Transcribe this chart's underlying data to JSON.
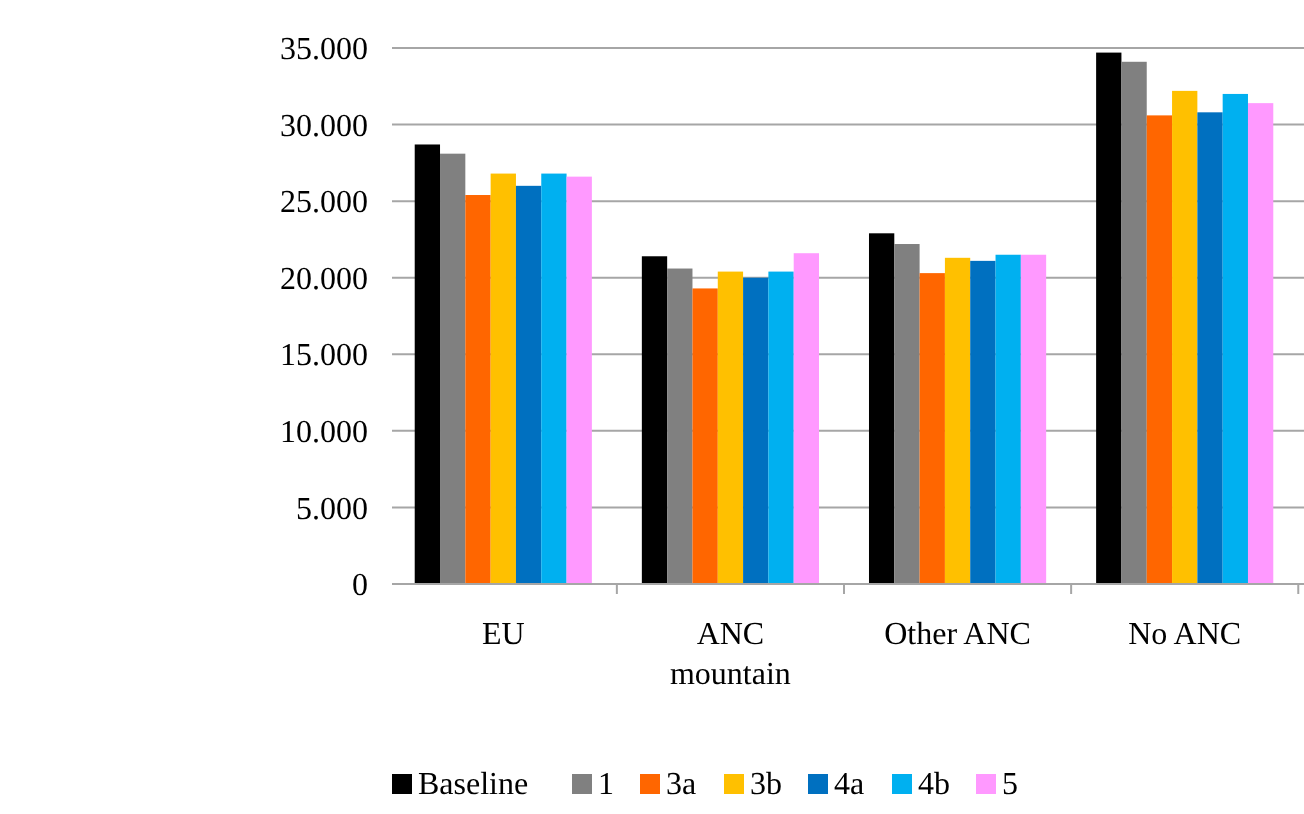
{
  "chart_data": {
    "type": "bar",
    "categories": [
      "EU",
      "ANC mountain",
      "Other ANC",
      "No ANC"
    ],
    "series": [
      {
        "name": "Baseline",
        "color": "#000000",
        "values": [
          28700,
          21400,
          22900,
          34700
        ]
      },
      {
        "name": "1",
        "color": "#808080",
        "values": [
          28100,
          20600,
          22200,
          34100
        ]
      },
      {
        "name": "3a",
        "color": "#ff6600",
        "values": [
          25400,
          19300,
          20300,
          30600
        ]
      },
      {
        "name": "3b",
        "color": "#ffc000",
        "values": [
          26800,
          20400,
          21300,
          32200
        ]
      },
      {
        "name": "4a",
        "color": "#0070c0",
        "values": [
          26000,
          20000,
          21100,
          30800
        ]
      },
      {
        "name": "4b",
        "color": "#00b0f0",
        "values": [
          26800,
          20400,
          21500,
          32000
        ]
      },
      {
        "name": "5",
        "color": "#ff99ff",
        "values": [
          26600,
          21600,
          21500,
          31400
        ]
      }
    ],
    "ylim": [
      0,
      35000
    ],
    "yticks": [
      0,
      {
        "value": 5000,
        "label": "5.000"
      },
      {
        "value": 10000,
        "label": "10.000"
      },
      {
        "value": 15000,
        "label": "15.000"
      },
      {
        "value": 20000,
        "label": "20.000"
      },
      {
        "value": 25000,
        "label": "25.000"
      },
      {
        "value": 30000,
        "label": "30.000"
      },
      {
        "value": 35000,
        "label": "35.000"
      }
    ],
    "grid": "y",
    "legend": "bottom"
  }
}
